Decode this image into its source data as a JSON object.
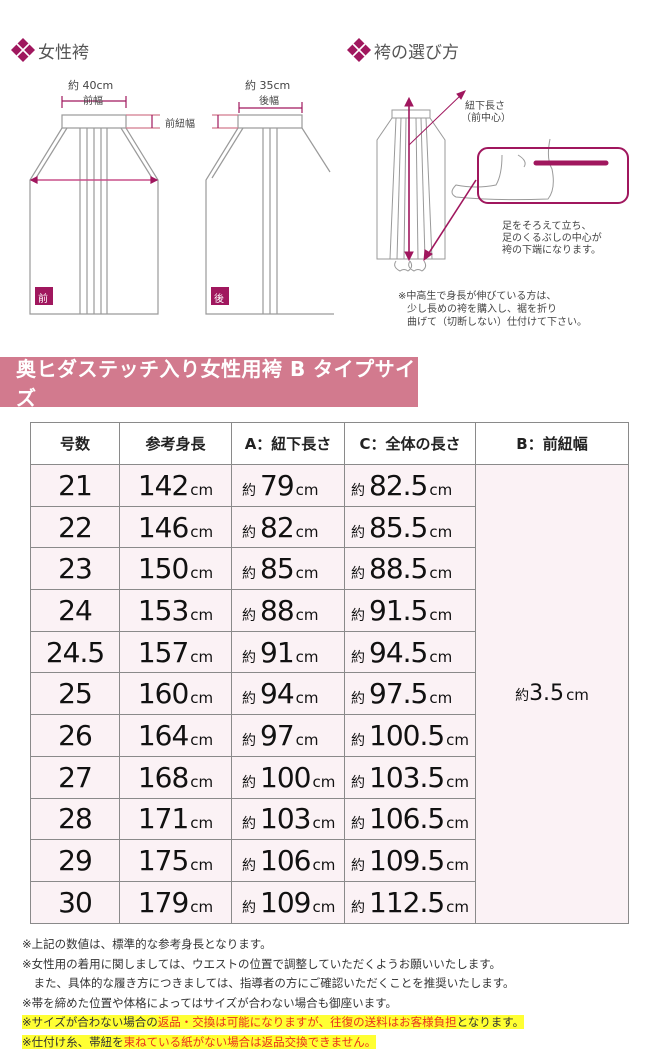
{
  "diagram": {
    "left_title": "女性袴",
    "right_title": "袴の選び方",
    "front_width_value": "約 40cm",
    "front_width_label": "前幅",
    "back_width_value": "約 35cm",
    "back_width_label": "後幅",
    "front_tie_width_label": "前紐幅",
    "front_badge": "前",
    "back_badge": "後",
    "himo_length_label_1": "紐下長さ",
    "himo_length_label_2": "（前中心）",
    "foot_note_1": "足をそろえて立ち、",
    "foot_note_2": "足のくるぶしの中心が",
    "foot_note_3": "袴の下端になります。",
    "growth_note_1": "※中高生で身長が伸びている方は、",
    "growth_note_2": "少し長めの袴を購入し、裾を折り",
    "growth_note_3": "曲げて（切断しない）仕付けて下さい。",
    "accent_color": "#a0175e"
  },
  "banner": {
    "title": "奥ヒダステッチ入り女性用袴 B タイプサイズ",
    "color": "#d27a8e"
  },
  "table": {
    "headers": [
      "号数",
      "参考身長",
      "A：紐下長さ",
      "C：全体の長さ",
      "B：前紐幅"
    ],
    "approx_prefix": "約",
    "unit": "cm",
    "rows": [
      {
        "size": "21",
        "height": "142",
        "himo": "79",
        "total": "82.5"
      },
      {
        "size": "22",
        "height": "146",
        "himo": "82",
        "total": "85.5"
      },
      {
        "size": "23",
        "height": "150",
        "himo": "85",
        "total": "88.5"
      },
      {
        "size": "24",
        "height": "153",
        "himo": "88",
        "total": "91.5"
      },
      {
        "size": "24.5",
        "height": "157",
        "himo": "91",
        "total": "94.5"
      },
      {
        "size": "25",
        "height": "160",
        "himo": "94",
        "total": "97.5"
      },
      {
        "size": "26",
        "height": "164",
        "himo": "97",
        "total": "100.5"
      },
      {
        "size": "27",
        "height": "168",
        "himo": "100",
        "total": "103.5"
      },
      {
        "size": "28",
        "height": "171",
        "himo": "103",
        "total": "106.5"
      },
      {
        "size": "29",
        "height": "175",
        "himo": "106",
        "total": "109.5"
      },
      {
        "size": "30",
        "height": "179",
        "himo": "109",
        "total": "112.5"
      }
    ],
    "front_tie_width_prefix": "約",
    "front_tie_width": "3.5",
    "front_tie_width_unit": "cm"
  },
  "notes": {
    "n1": "※上記の数値は、標準的な参考身長となります。",
    "n2": "※女性用の着用に関しましては、ウエストの位置で調整していただくようお願いいたします。",
    "n3": "　また、具体的な履き方につきましては、指導者の方にご確認いただくことを推奨いたします。",
    "n4": "※帯を締めた位置や体格によってはサイズが合わない場合も御座います。",
    "n5a": "※サイズが合わない場合の",
    "n5b": "返品・交換は可能になりますが、往復の送料はお客様負担",
    "n5c": "となります。",
    "n6a": "※仕付け糸、帯紐を",
    "n6b": "束ねている紙がない場合は返品交換できません。"
  }
}
